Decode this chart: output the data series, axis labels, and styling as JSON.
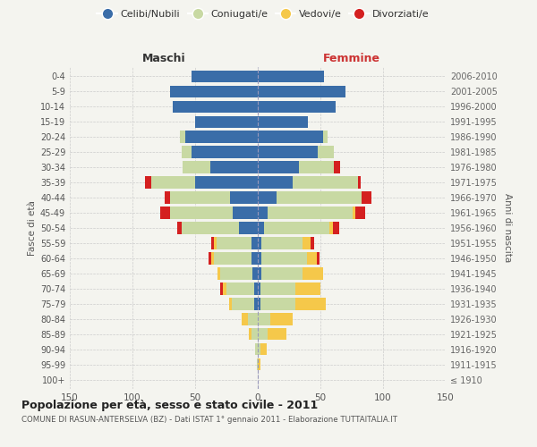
{
  "age_groups": [
    "100+",
    "95-99",
    "90-94",
    "85-89",
    "80-84",
    "75-79",
    "70-74",
    "65-69",
    "60-64",
    "55-59",
    "50-54",
    "45-49",
    "40-44",
    "35-39",
    "30-34",
    "25-29",
    "20-24",
    "15-19",
    "10-14",
    "5-9",
    "0-4"
  ],
  "birth_years": [
    "≤ 1910",
    "1911-1915",
    "1916-1920",
    "1921-1925",
    "1926-1930",
    "1931-1935",
    "1936-1940",
    "1941-1945",
    "1946-1950",
    "1951-1955",
    "1956-1960",
    "1961-1965",
    "1966-1970",
    "1971-1975",
    "1976-1980",
    "1981-1985",
    "1986-1990",
    "1991-1995",
    "1996-2000",
    "2001-2005",
    "2006-2010"
  ],
  "m_celibi": [
    0,
    0,
    0,
    0,
    0,
    3,
    3,
    4,
    5,
    5,
    15,
    20,
    22,
    50,
    38,
    53,
    58,
    50,
    68,
    70,
    53
  ],
  "m_coniugati": [
    0,
    1,
    2,
    5,
    8,
    18,
    22,
    26,
    30,
    28,
    46,
    50,
    48,
    35,
    22,
    8,
    4,
    0,
    0,
    0,
    0
  ],
  "m_vedovi": [
    0,
    0,
    0,
    2,
    5,
    2,
    3,
    2,
    2,
    2,
    0,
    0,
    0,
    0,
    0,
    0,
    0,
    0,
    0,
    0,
    0
  ],
  "m_divorziati": [
    0,
    0,
    0,
    0,
    0,
    0,
    2,
    0,
    2,
    2,
    3,
    8,
    4,
    5,
    0,
    0,
    0,
    0,
    0,
    0,
    0
  ],
  "f_nubili": [
    0,
    0,
    0,
    0,
    0,
    2,
    2,
    3,
    3,
    3,
    5,
    8,
    15,
    28,
    33,
    48,
    52,
    40,
    62,
    70,
    53
  ],
  "f_coniugate": [
    0,
    0,
    2,
    8,
    10,
    28,
    28,
    33,
    36,
    33,
    52,
    68,
    68,
    52,
    28,
    13,
    4,
    0,
    0,
    0,
    0
  ],
  "f_vedove": [
    0,
    2,
    5,
    15,
    18,
    24,
    20,
    16,
    8,
    6,
    3,
    2,
    0,
    0,
    0,
    0,
    0,
    0,
    0,
    0,
    0
  ],
  "f_divorziate": [
    0,
    0,
    0,
    0,
    0,
    0,
    0,
    0,
    2,
    3,
    5,
    8,
    8,
    2,
    5,
    0,
    0,
    0,
    0,
    0,
    0
  ],
  "colors": {
    "celibi": "#3a6da8",
    "coniugati": "#c8d9a3",
    "vedovi": "#f5c84a",
    "divorziati": "#d42020"
  },
  "title": "Popolazione per età, sesso e stato civile - 2011",
  "subtitle": "COMUNE DI RASUN-ANTERSELVA (BZ) - Dati ISTAT 1° gennaio 2011 - Elaborazione TUTTAITALIA.IT",
  "label_maschi": "Maschi",
  "label_femmine": "Femmine",
  "ylabel_left": "Fasce di età",
  "ylabel_right": "Anni di nascita",
  "xlim": 150,
  "bg_color": "#f4f4ef",
  "grid_color": "#cccccc"
}
